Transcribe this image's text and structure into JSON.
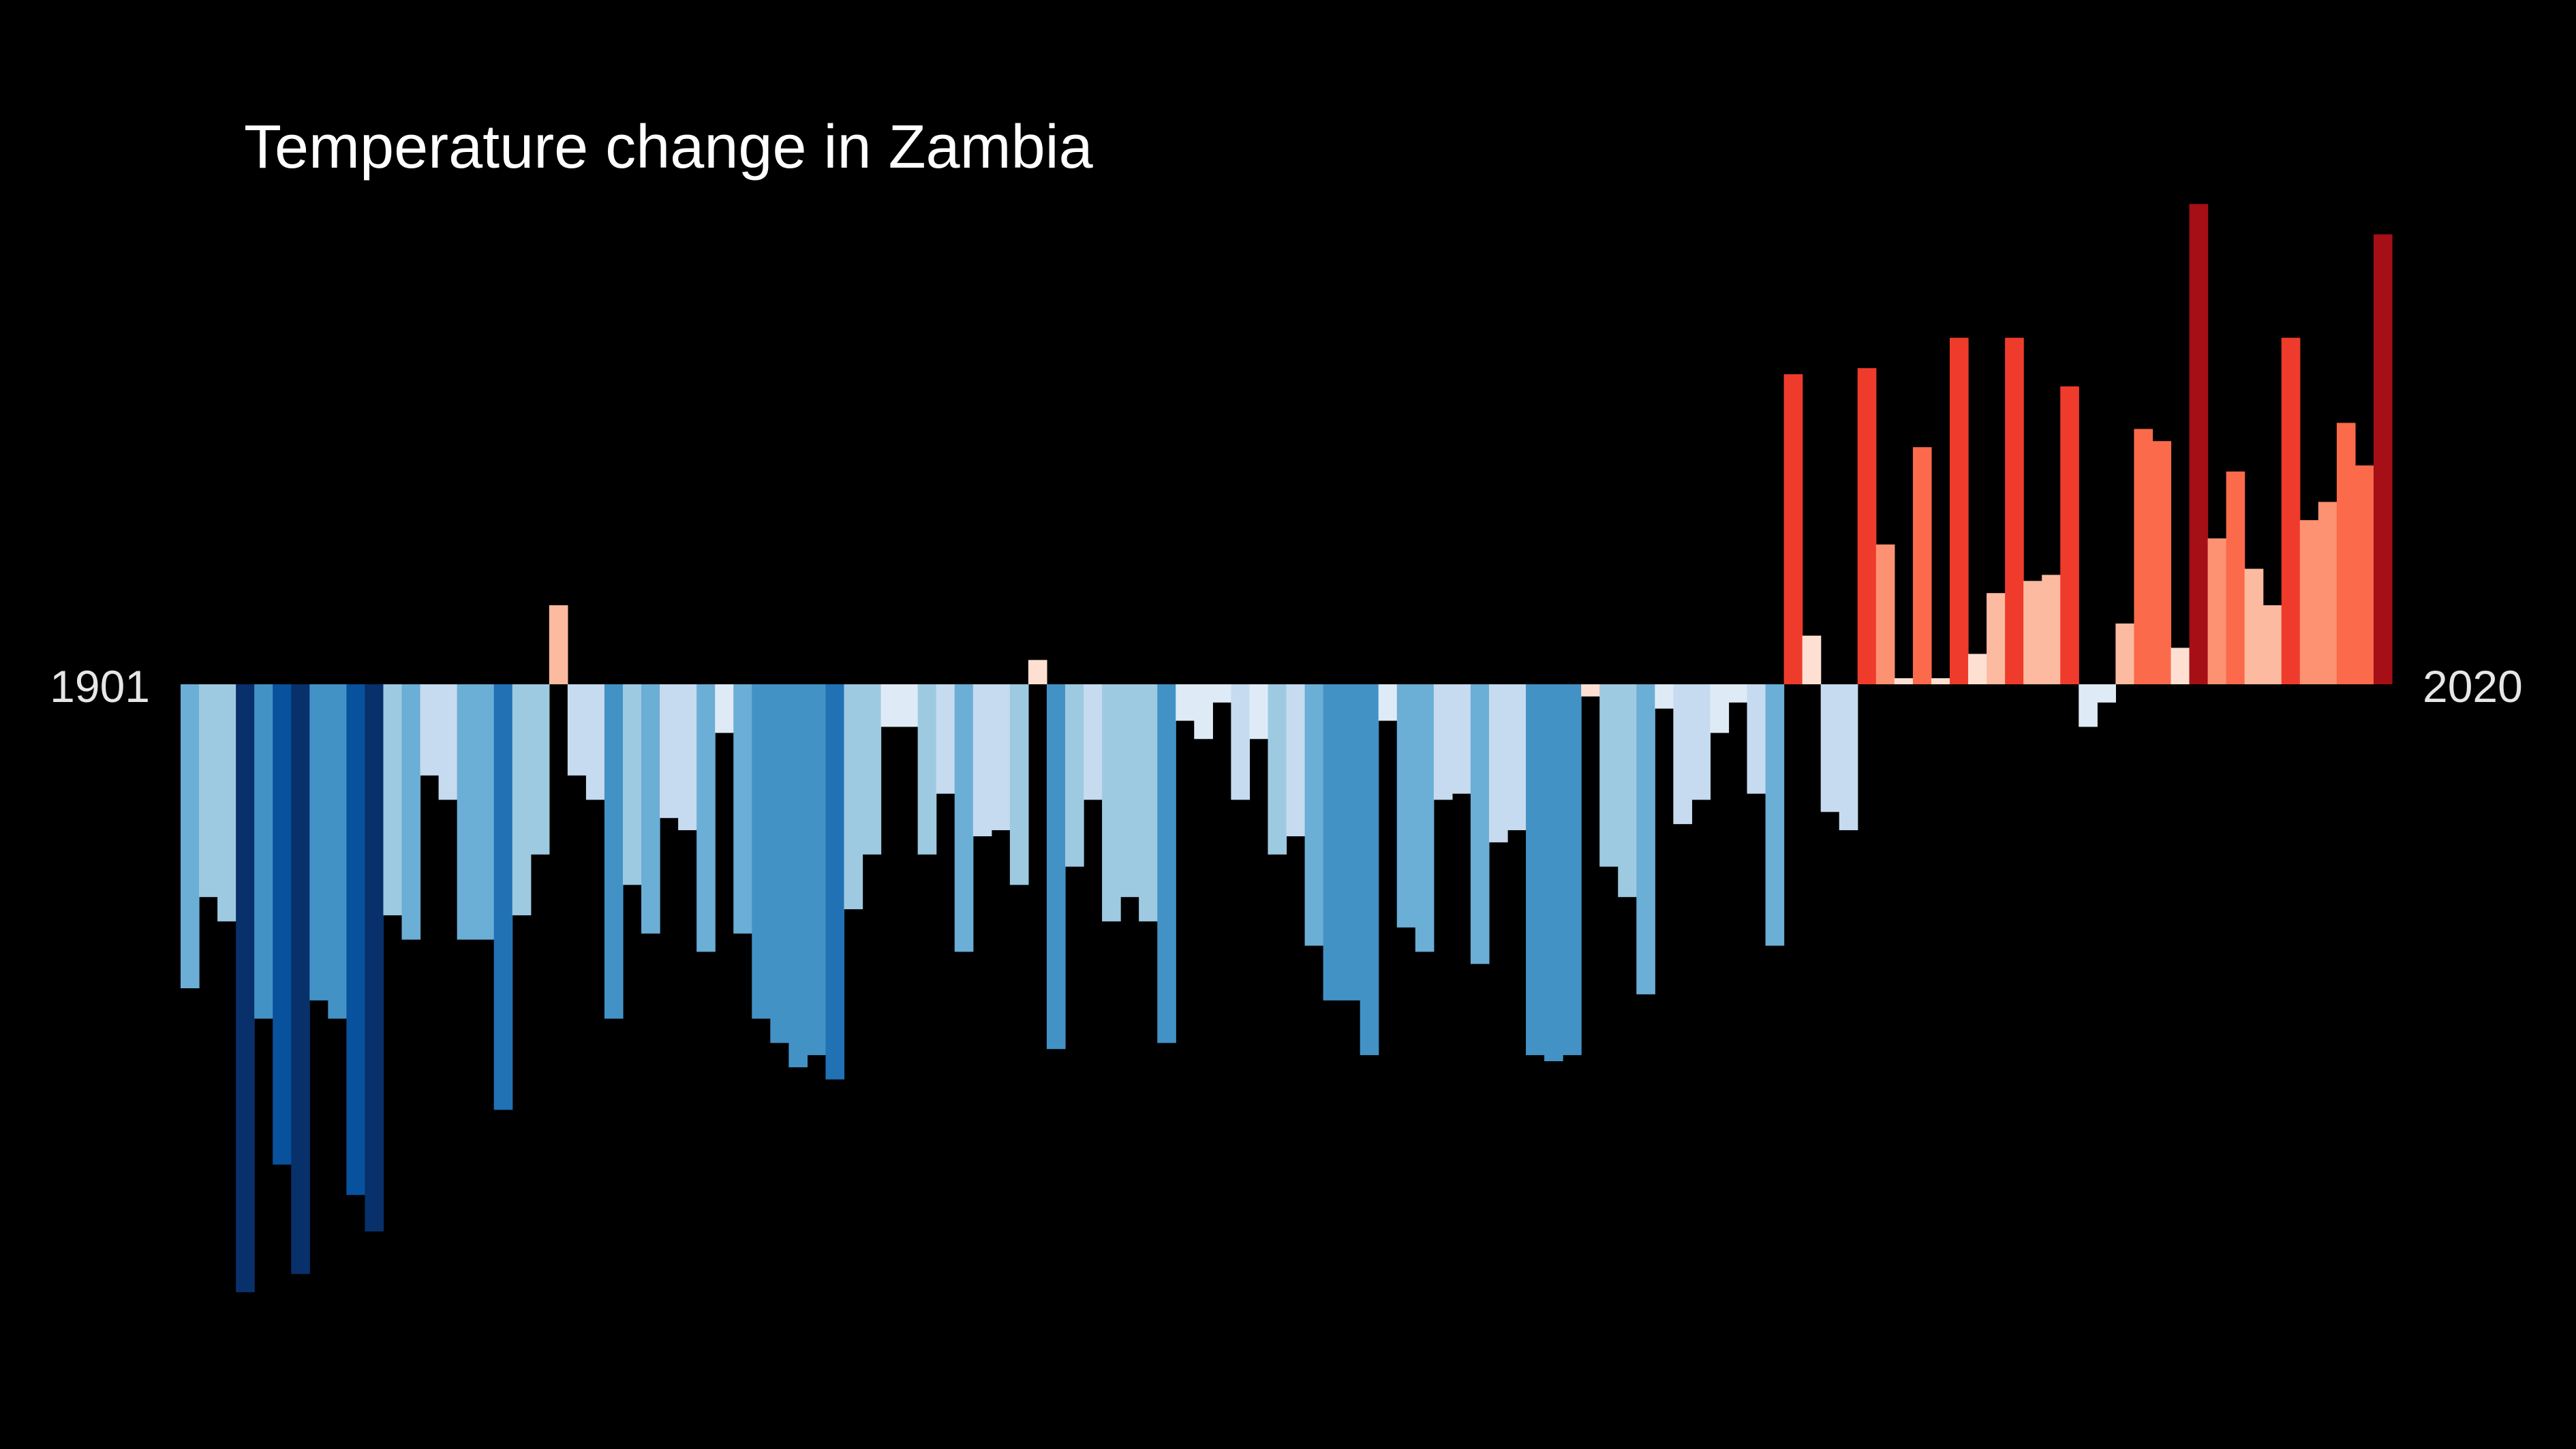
{
  "chart_data": {
    "type": "bar",
    "title": "Temperature change in Zambia",
    "start_label": "1901",
    "end_label": "2020",
    "x_start": 1901,
    "x_end": 2020,
    "y_unit": "relative anomaly (baseline = 0)",
    "ylim": [
      -1.0,
      0.95
    ],
    "grid": false,
    "legend": "none",
    "colors": {
      "background": "#000000",
      "text": "#ffffff",
      "scale": [
        "#08306b",
        "#08519c",
        "#2171b5",
        "#4292c6",
        "#6baed6",
        "#9ecae1",
        "#c6dbef",
        "#deebf7",
        "#fee0d2",
        "#fcbba1",
        "#fc9272",
        "#fb6a4a",
        "#ef3b2c",
        "#cb181d",
        "#a50f15",
        "#67000d"
      ]
    },
    "x": [
      1901,
      1902,
      1903,
      1904,
      1905,
      1906,
      1907,
      1908,
      1909,
      1910,
      1911,
      1912,
      1913,
      1914,
      1915,
      1916,
      1917,
      1918,
      1919,
      1920,
      1921,
      1922,
      1923,
      1924,
      1925,
      1926,
      1927,
      1928,
      1929,
      1930,
      1931,
      1932,
      1933,
      1934,
      1935,
      1936,
      1937,
      1938,
      1939,
      1940,
      1941,
      1942,
      1943,
      1944,
      1945,
      1946,
      1947,
      1948,
      1949,
      1950,
      1951,
      1952,
      1953,
      1954,
      1955,
      1956,
      1957,
      1958,
      1959,
      1960,
      1961,
      1962,
      1963,
      1964,
      1965,
      1966,
      1967,
      1968,
      1969,
      1970,
      1971,
      1972,
      1973,
      1974,
      1975,
      1976,
      1977,
      1978,
      1979,
      1980,
      1981,
      1982,
      1983,
      1984,
      1985,
      1986,
      1987,
      1988,
      1989,
      1990,
      1991,
      1992,
      1993,
      1994,
      1995,
      1996,
      1997,
      1998,
      1999,
      2000,
      2001,
      2002,
      2003,
      2004,
      2005,
      2006,
      2007,
      2008,
      2009,
      2010,
      2011,
      2012,
      2013,
      2014,
      2015,
      2016,
      2017,
      2018,
      2019,
      2020
    ],
    "values": [
      -0.5,
      -0.35,
      -0.39,
      -1.0,
      -0.55,
      -0.79,
      -0.97,
      -0.52,
      -0.55,
      -0.84,
      -0.9,
      -0.38,
      -0.42,
      -0.15,
      -0.19,
      -0.42,
      -0.42,
      -0.7,
      -0.38,
      -0.28,
      0.13,
      -0.15,
      -0.19,
      -0.55,
      -0.33,
      -0.41,
      -0.22,
      -0.24,
      -0.44,
      -0.08,
      -0.41,
      -0.55,
      -0.59,
      -0.63,
      -0.61,
      -0.65,
      -0.37,
      -0.28,
      -0.07,
      -0.07,
      -0.28,
      -0.18,
      -0.44,
      -0.25,
      -0.24,
      -0.33,
      0.04,
      -0.6,
      -0.3,
      -0.19,
      -0.39,
      -0.35,
      -0.39,
      -0.59,
      -0.06,
      -0.09,
      -0.03,
      -0.19,
      -0.09,
      -0.28,
      -0.25,
      -0.43,
      -0.52,
      -0.52,
      -0.61,
      -0.06,
      -0.4,
      -0.44,
      -0.19,
      -0.18,
      -0.46,
      -0.26,
      -0.24,
      -0.61,
      -0.62,
      -0.61,
      -0.02,
      -0.3,
      -0.35,
      -0.51,
      -0.04,
      -0.23,
      -0.19,
      -0.08,
      -0.03,
      -0.18,
      -0.43,
      0.51,
      0.08,
      -0.21,
      -0.24,
      0.52,
      0.23,
      0.01,
      0.39,
      0.01,
      0.57,
      0.05,
      0.15,
      0.57,
      0.17,
      0.18,
      0.49,
      -0.07,
      -0.03,
      0.1,
      0.42,
      0.4,
      0.06,
      0.79,
      0.24,
      0.35,
      0.19,
      0.13,
      0.57,
      0.27,
      0.3,
      0.43,
      0.36,
      0.74
    ]
  }
}
